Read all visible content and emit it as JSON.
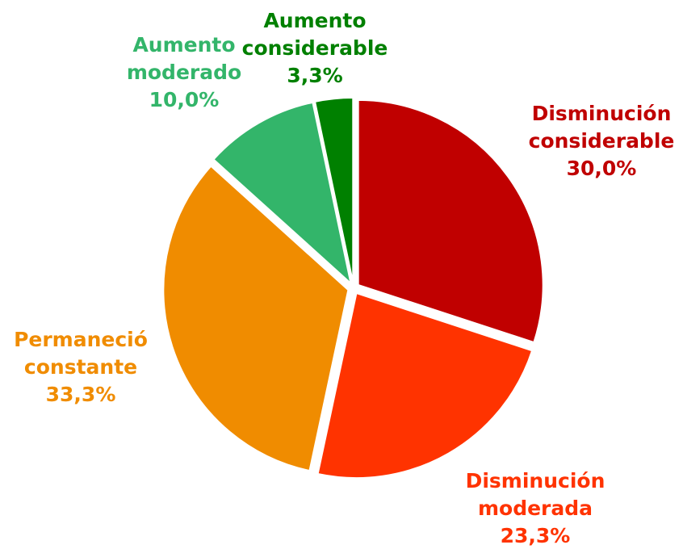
{
  "chart_data": {
    "type": "pie",
    "categories": [
      "Disminución considerable",
      "Disminución moderada",
      "Permaneció constante",
      "Aumento moderado",
      "Aumento considerable"
    ],
    "values": [
      30.0,
      23.3,
      33.3,
      10.0,
      3.3
    ],
    "value_labels": [
      "30,0%",
      "23,3%",
      "33,3%",
      "10,0%",
      "3,3%"
    ],
    "colors": [
      "#c00000",
      "#ff3300",
      "#f08c00",
      "#33b56a",
      "#008000"
    ]
  }
}
